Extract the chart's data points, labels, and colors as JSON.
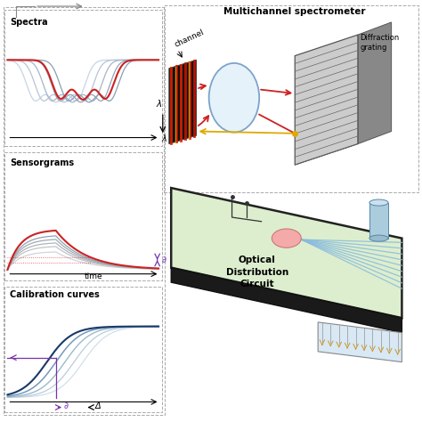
{
  "bg_color": "#ffffff",
  "spectra_label": "Spectra",
  "sensorgrams_label": "Sensorgrams",
  "calibration_label": "Calibration curves",
  "multichannel_label": "Multichannel spectrometer",
  "diffraction_label": "Diffraction\ngrating",
  "channel_label": "channel",
  "lambda_label": "λ",
  "time_label": "time",
  "delta_label": "Δ",
  "partial_label": "∂",
  "optical_label": "Optical\nDistribution\nCircuit",
  "red_color": "#cc2222",
  "blue_color": "#4477aa",
  "light_blue": "#aabbdd",
  "purple_color": "#7733aa",
  "gray_color": "#888888",
  "dark_gray": "#444444",
  "green_bg": "#ddeece",
  "dashed_color": "#aaaaaa",
  "connector_blue": "#aaccdd",
  "waveguide_blue": "#88bbdd"
}
